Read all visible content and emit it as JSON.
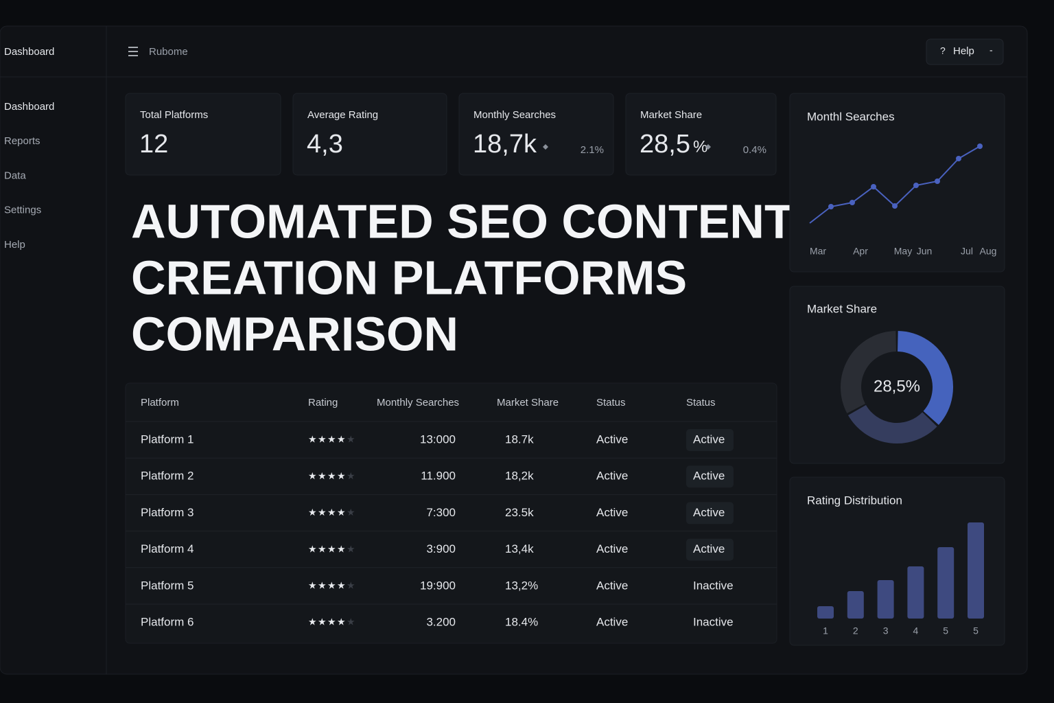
{
  "sidebar": {
    "brand": "Dashboard",
    "menu": [
      "Dashboard",
      "Reports",
      "Data",
      "Settings",
      "Help"
    ]
  },
  "topbar": {
    "app": "Rubome",
    "help_icon": "?",
    "help": "Help",
    "help_extra": "-"
  },
  "kpis": [
    {
      "label": "Total Platforms",
      "value": "12"
    },
    {
      "label": "Average Rating",
      "value": "4,3"
    },
    {
      "label": "Monthly Searches",
      "value": "18,7k",
      "change": "2.1%"
    },
    {
      "label": "Market Share",
      "value": "28,5",
      "unit": "%",
      "change": "0.4%"
    }
  ],
  "title": [
    "AUTOMATED SEO CONTENT",
    "CREATION PLATFORMS",
    "COMPARISON"
  ],
  "table": {
    "headers": [
      "Platform",
      "Rating",
      "Monthly Searches",
      "Market Share",
      "Status",
      "Status"
    ],
    "rows": [
      {
        "platform": "Platform 1",
        "rating": 4,
        "searches": "13:000",
        "share": "18.7k",
        "status": "Active",
        "badge": "Active"
      },
      {
        "platform": "Platform 2",
        "rating": 4,
        "searches": "11.900",
        "share": "18,2k",
        "status": "Active",
        "badge": "Active"
      },
      {
        "platform": "Platform 3",
        "rating": 4,
        "searches": "7:300",
        "share": "23.5k",
        "status": "Active",
        "badge": "Active"
      },
      {
        "platform": "Platform 4",
        "rating": 4,
        "searches": "3:900",
        "share": "13,4k",
        "status": "Active",
        "badge": "Active"
      },
      {
        "platform": "Platform 5",
        "rating": 4,
        "searches": "19:900",
        "share": "13,2%",
        "status": "Active",
        "badge": "Inactive"
      },
      {
        "platform": "Platform 6",
        "rating": 4,
        "searches": "3.200",
        "share": "18.4%",
        "status": "Active",
        "badge": "Inactive"
      }
    ]
  },
  "line_chart": {
    "type": "line",
    "title": "Monthl Searches",
    "categories": [
      "Mar",
      null,
      "Apr",
      null,
      "May",
      "Jun",
      null,
      "Jul",
      "Aug"
    ],
    "values": [
      15,
      39,
      45,
      68,
      40,
      70,
      76,
      109,
      127
    ],
    "color": "#4a62c0"
  },
  "donut": {
    "type": "pie",
    "title": "Market Share",
    "center": "28,5%",
    "values": [
      37,
      30,
      33
    ],
    "colors": [
      "#4563bd",
      "#353d5e",
      "#2a2d34"
    ]
  },
  "bar_chart": {
    "type": "bar",
    "title": "Rating Distribution",
    "categories": [
      "1",
      "2",
      "3",
      "4",
      "5",
      "5"
    ],
    "values": [
      18,
      40,
      56,
      76,
      104,
      140
    ],
    "color": "#3e4a80"
  }
}
